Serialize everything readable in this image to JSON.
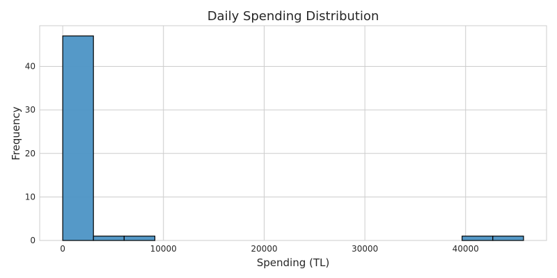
{
  "chart_data": {
    "type": "histogram",
    "title": "Daily Spending Distribution",
    "xlabel": "Spending (TL)",
    "ylabel": "Frequency",
    "bin_edges": [
      0,
      3050,
      6100,
      9150,
      12200,
      15250,
      18300,
      21350,
      24400,
      27450,
      30500,
      33550,
      36600,
      39650,
      42700,
      45750
    ],
    "counts": [
      47,
      1,
      1,
      0,
      0,
      0,
      0,
      0,
      0,
      0,
      0,
      0,
      0,
      1,
      1
    ],
    "xlim": [
      -2287,
      48037
    ],
    "ylim": [
      0,
      49.35
    ],
    "xticks": [
      0,
      10000,
      20000,
      30000,
      40000
    ],
    "yticks": [
      0,
      10,
      20,
      30,
      40
    ],
    "grid": true,
    "bar_color": "#4c93c5",
    "edge_color": "#000000"
  }
}
